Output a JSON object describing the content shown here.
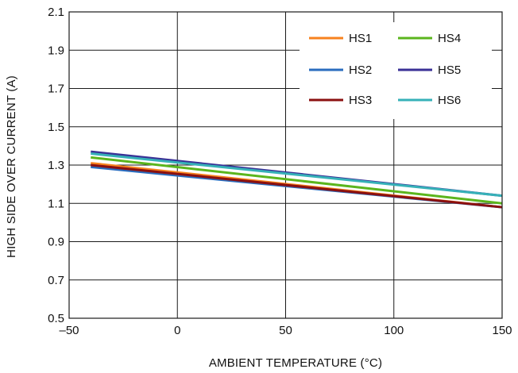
{
  "chart_data": {
    "type": "line",
    "title": "",
    "xlabel": "AMBIENT TEMPERATURE (°C)",
    "ylabel": "HIGH SIDE OVER CURRENT (A)",
    "xlim": [
      -50,
      150
    ],
    "ylim": [
      0.5,
      2.1
    ],
    "x_ticks": [
      -50,
      0,
      50,
      100,
      150
    ],
    "x_tick_labels": [
      "–50",
      "0",
      "50",
      "100",
      "150"
    ],
    "y_ticks": [
      0.5,
      0.7,
      0.9,
      1.1,
      1.3,
      1.5,
      1.7,
      1.9,
      2.1
    ],
    "y_tick_labels": [
      "0.5",
      "0.7",
      "0.9",
      "1.1",
      "1.3",
      "1.5",
      "1.7",
      "1.9",
      "2.1"
    ],
    "grid": true,
    "legend_position": "top-right",
    "series": [
      {
        "name": "HS1",
        "color": "#f7821e",
        "x": [
          -40,
          150
        ],
        "y": [
          1.31,
          1.08
        ]
      },
      {
        "name": "HS2",
        "color": "#2a6dbf",
        "x": [
          -40,
          150
        ],
        "y": [
          1.29,
          1.08
        ]
      },
      {
        "name": "HS3",
        "color": "#8b1010",
        "x": [
          -40,
          150
        ],
        "y": [
          1.3,
          1.08
        ]
      },
      {
        "name": "HS4",
        "color": "#5bb51d",
        "x": [
          -40,
          150
        ],
        "y": [
          1.34,
          1.1
        ]
      },
      {
        "name": "HS5",
        "color": "#3a3096",
        "x": [
          -40,
          150
        ],
        "y": [
          1.37,
          1.14
        ]
      },
      {
        "name": "HS6",
        "color": "#36b1b8",
        "x": [
          -40,
          150
        ],
        "y": [
          1.36,
          1.14
        ]
      }
    ]
  }
}
